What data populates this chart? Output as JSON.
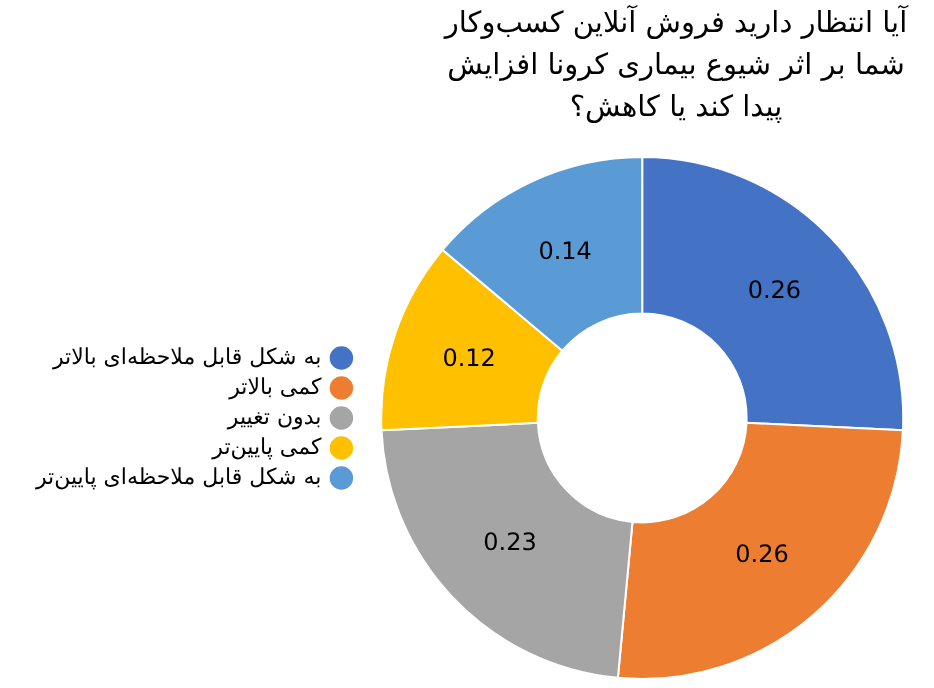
{
  "chart_data": {
    "type": "donut",
    "title": "آیا انتظار دارید فروش آنلاین کسب‌وکار شما بر اثر شیوع بیماری کرونا افزایش پیدا کند یا کاهش؟",
    "categories": [
      "به شکل قابل ملاحظه‌ای بالاتر",
      "کمی بالاتر",
      "بدون تغییر",
      "کمی پایین‌تر",
      "به شکل قابل ملاحظه‌ای پایین‌تر"
    ],
    "values": [
      0.26,
      0.26,
      0.23,
      0.12,
      0.14
    ],
    "colors": [
      "#4472c4",
      "#ed7d31",
      "#a5a5a5",
      "#ffc000",
      "#5b9bd5"
    ],
    "data_labels": true,
    "legend": "left"
  }
}
